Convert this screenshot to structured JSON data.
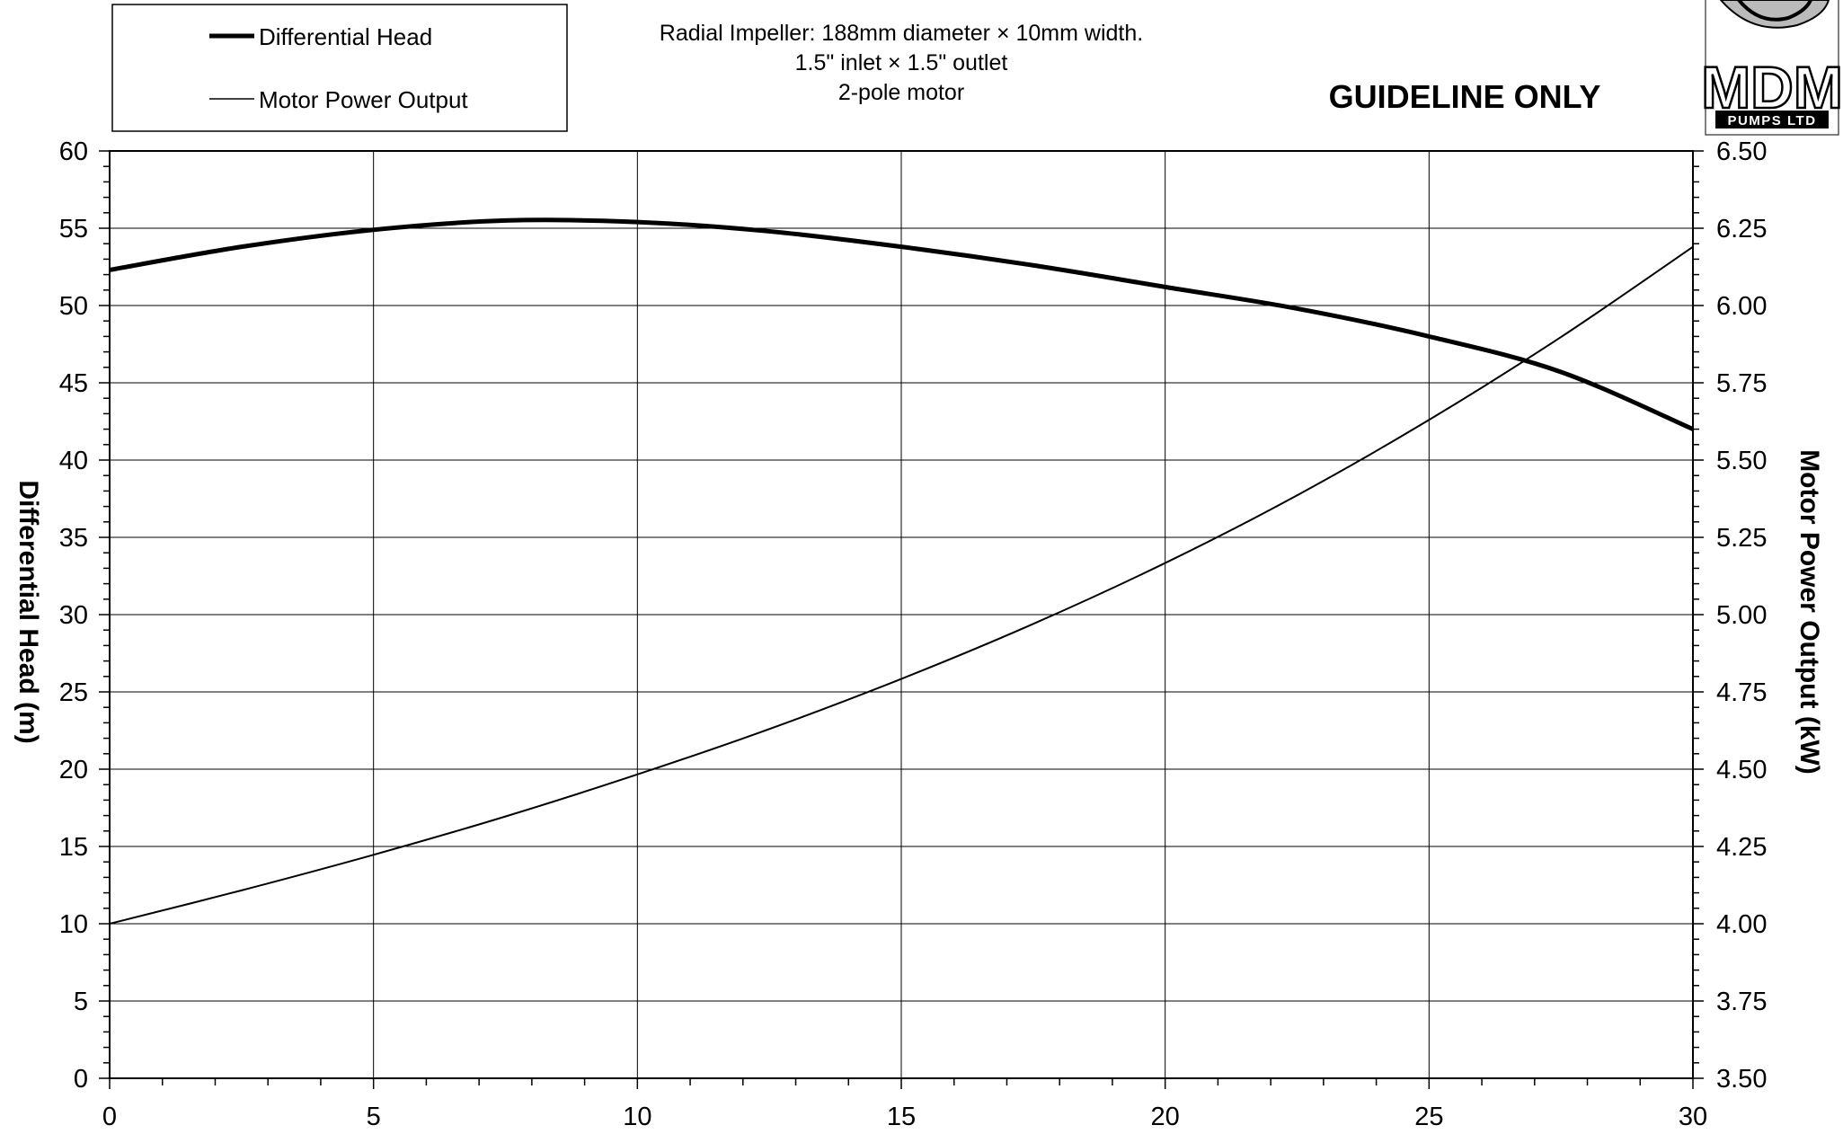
{
  "chart_data": {
    "type": "line",
    "info_lines": [
      "Radial Impeller: 188mm diameter × 10mm width.",
      "1.5\" inlet × 1.5\" outlet",
      "2-pole motor"
    ],
    "notice": "GUIDELINE ONLY",
    "xlabel": "",
    "ylabel_left": "Differential Head (m)",
    "ylabel_right": "Motor Power Output (kW)",
    "xlim": [
      0,
      30
    ],
    "ylim_left": [
      0,
      60
    ],
    "ylim_right": [
      3.5,
      6.5
    ],
    "x_ticks": [
      "0",
      "5",
      "10",
      "15",
      "20",
      "25",
      "30"
    ],
    "y_left_ticks": [
      "0",
      "5",
      "10",
      "15",
      "20",
      "25",
      "30",
      "35",
      "40",
      "45",
      "50",
      "55",
      "60"
    ],
    "y_right_ticks": [
      "3.50",
      "3.75",
      "4.00",
      "4.25",
      "4.50",
      "4.75",
      "5.00",
      "5.25",
      "5.50",
      "5.75",
      "6.00",
      "6.25",
      "6.50"
    ],
    "grid": true,
    "legend_position": "top-left",
    "series": [
      {
        "name": "Differential Head",
        "axis": "left",
        "line": "thick",
        "x": [
          0,
          2.5,
          5,
          7.5,
          10,
          12.5,
          15,
          17.5,
          20,
          22.5,
          25,
          27.5,
          30
        ],
        "values": [
          52.3,
          53.8,
          54.9,
          55.5,
          55.4,
          54.8,
          53.8,
          52.6,
          51.2,
          49.8,
          48.0,
          45.7,
          42.0
        ]
      },
      {
        "name": "Motor Power Output",
        "axis": "right",
        "line": "thin",
        "x": [
          0,
          2.5,
          5,
          7.5,
          10,
          12.5,
          15,
          17.5,
          20,
          22.5,
          25,
          27.5,
          30
        ],
        "values": [
          4.0,
          4.108,
          4.223,
          4.347,
          4.483,
          4.63,
          4.792,
          4.97,
          5.167,
          5.386,
          5.63,
          5.898,
          6.19
        ]
      }
    ]
  },
  "logo": {
    "brand": "MDM",
    "tagline": "PUMPS LTD"
  }
}
